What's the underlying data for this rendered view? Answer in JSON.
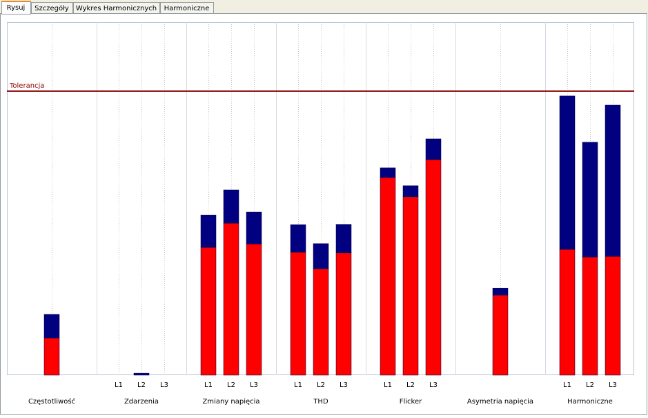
{
  "tabs": {
    "items": [
      "Rysuj",
      "Szczegóły",
      "Wykres Harmonicznych",
      "Harmoniczne"
    ],
    "active": 0
  },
  "chart_data": {
    "type": "bar",
    "stacked": true,
    "colors": [
      "#ff0000",
      "#000080"
    ],
    "ylim": [
      0,
      124.3
    ],
    "tolerance": {
      "value": 100,
      "label": "Tolerancja",
      "color": "#8b0000"
    },
    "groups": [
      {
        "name": "Częstotliwość",
        "categories": [
          null
        ],
        "series": [
          [
            13.1
          ],
          [
            8.3
          ]
        ]
      },
      {
        "name": "Zdarzenia",
        "categories": [
          "L1",
          "L2",
          "L3"
        ],
        "series": [
          [
            0,
            0,
            0
          ],
          [
            0,
            0.7,
            0
          ]
        ]
      },
      {
        "name": "Zmiany napięcia",
        "categories": [
          "L1",
          "L2",
          "L3"
        ],
        "series": [
          [
            45.0,
            53.5,
            46.2
          ],
          [
            11.4,
            11.7,
            11.2
          ]
        ]
      },
      {
        "name": "THD",
        "categories": [
          "L1",
          "L2",
          "L3"
        ],
        "series": [
          [
            43.3,
            37.5,
            43.1
          ],
          [
            9.7,
            8.8,
            10.0
          ]
        ]
      },
      {
        "name": "Flicker",
        "categories": [
          "L1",
          "L2",
          "L3"
        ],
        "series": [
          [
            69.6,
            62.8,
            75.9
          ],
          [
            3.4,
            3.9,
            7.3
          ]
        ]
      },
      {
        "name": "Asymetria napięcia",
        "categories": [
          null
        ],
        "series": [
          [
            28.2
          ],
          [
            2.4
          ]
        ]
      },
      {
        "name": "Harmoniczne",
        "categories": [
          "L1",
          "L2",
          "L3"
        ],
        "series": [
          [
            44.3,
            41.6,
            41.8
          ],
          [
            54.0,
            40.4,
            53.3
          ]
        ]
      }
    ]
  }
}
